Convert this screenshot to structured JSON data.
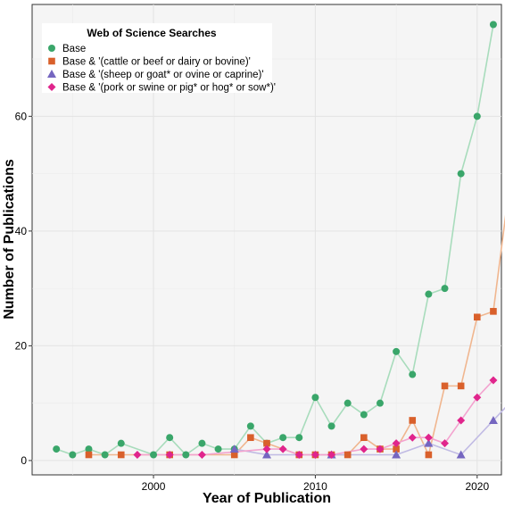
{
  "chart_data": {
    "type": "line",
    "xlabel": "Year of Publication",
    "ylabel": "Number of Publications",
    "xlim": [
      1992.5,
      2021.5
    ],
    "ylim": [
      -2.5,
      79.5
    ],
    "x_ticks": [
      2000,
      2010,
      2020
    ],
    "y_ticks": [
      0,
      20,
      40,
      60
    ],
    "grid": true,
    "legend": {
      "title": "Web of Science Searches",
      "position": "top-left"
    },
    "series": [
      {
        "name": "Base",
        "marker": "circle",
        "color": "#3aa66a",
        "line_color": "#a8dcbc",
        "points": [
          [
            1994,
            2
          ],
          [
            1995,
            1
          ],
          [
            1996,
            2
          ],
          [
            1997,
            1
          ],
          [
            1998,
            3
          ],
          [
            2000,
            1
          ],
          [
            2001,
            4
          ],
          [
            2002,
            1
          ],
          [
            2003,
            3
          ],
          [
            2004,
            2
          ],
          [
            2005,
            2
          ],
          [
            2006,
            6
          ],
          [
            2007,
            3
          ],
          [
            2008,
            4
          ],
          [
            2009,
            4
          ],
          [
            2010,
            11
          ],
          [
            2011,
            6
          ],
          [
            2012,
            10
          ],
          [
            2013,
            8
          ],
          [
            2014,
            10
          ],
          [
            2015,
            19
          ],
          [
            2016,
            15
          ],
          [
            2017,
            29
          ],
          [
            2018,
            30
          ],
          [
            2019,
            50
          ],
          [
            2020,
            60
          ],
          [
            2021,
            76
          ]
        ]
      },
      {
        "name": "Base & '(cattle or beef or dairy or bovine)'",
        "marker": "square",
        "color": "#d9602b",
        "line_color": "#f0b68f",
        "points": [
          [
            1996,
            1
          ],
          [
            1998,
            1
          ],
          [
            2001,
            1
          ],
          [
            2005,
            1
          ],
          [
            2006,
            4
          ],
          [
            2007,
            3
          ],
          [
            2009,
            1
          ],
          [
            2010,
            1
          ],
          [
            2011,
            1
          ],
          [
            2012,
            1
          ],
          [
            2013,
            4
          ],
          [
            2014,
            2
          ],
          [
            2015,
            2
          ],
          [
            2016,
            7
          ],
          [
            2017,
            1
          ],
          [
            2018,
            13
          ],
          [
            2019,
            13
          ],
          [
            2020,
            25
          ],
          [
            2021,
            26
          ],
          [
            2022,
            48
          ]
        ]
      },
      {
        "name": "Base & '(sheep or goat* or ovine or caprine)'",
        "marker": "triangle",
        "color": "#7566c0",
        "line_color": "#c1bbe4",
        "points": [
          [
            2005,
            2
          ],
          [
            2007,
            1
          ],
          [
            2011,
            1
          ],
          [
            2015,
            1
          ],
          [
            2017,
            3
          ],
          [
            2019,
            1
          ],
          [
            2021,
            7
          ],
          [
            2022,
            10
          ]
        ]
      },
      {
        "name": "Base & '(pork or swine or pig* or hog* or sow*)'",
        "marker": "diamond",
        "color": "#e0258c",
        "line_color": "#f3a3cf",
        "points": [
          [
            1999,
            1
          ],
          [
            2001,
            1
          ],
          [
            2003,
            1
          ],
          [
            2007,
            2
          ],
          [
            2008,
            2
          ],
          [
            2009,
            1
          ],
          [
            2010,
            1
          ],
          [
            2011,
            1
          ],
          [
            2013,
            2
          ],
          [
            2014,
            2
          ],
          [
            2015,
            3
          ],
          [
            2016,
            4
          ],
          [
            2017,
            4
          ],
          [
            2018,
            3
          ],
          [
            2019,
            7
          ],
          [
            2020,
            11
          ],
          [
            2021,
            14
          ]
        ]
      }
    ]
  }
}
